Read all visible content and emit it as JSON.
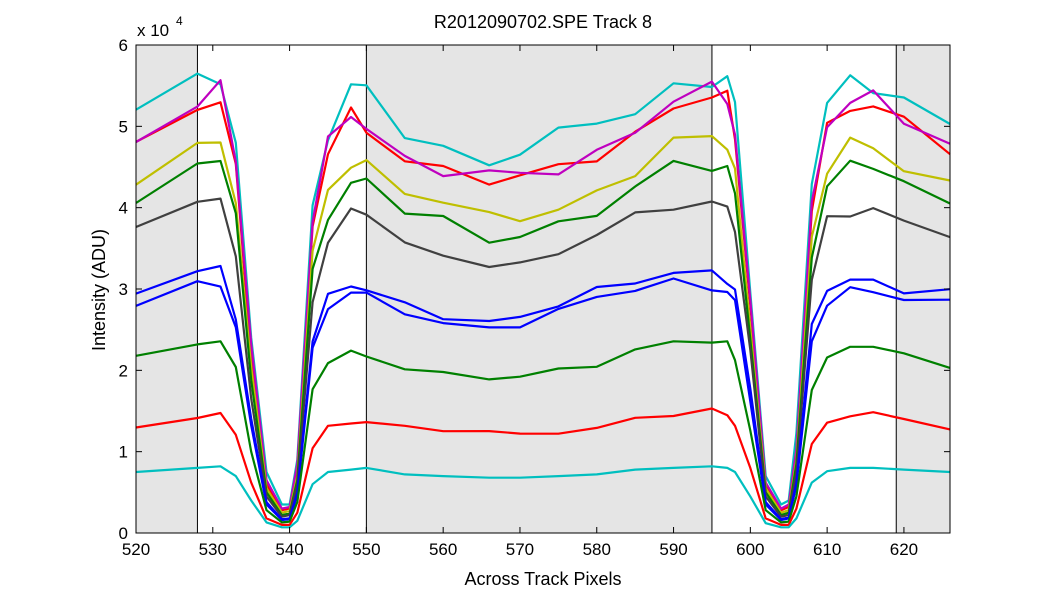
{
  "chart_data": {
    "type": "line",
    "title": "R2012090702.SPE   Track 8",
    "xlabel": "Across Track Pixels",
    "ylabel": "Intensity (ADU)",
    "y_multiplier_label": "x 10",
    "y_multiplier_exponent": "4",
    "xlim": [
      520,
      626
    ],
    "ylim": [
      0,
      6
    ],
    "x_ticks": [
      520,
      530,
      540,
      550,
      560,
      570,
      580,
      590,
      600,
      610,
      620
    ],
    "y_ticks": [
      0,
      1,
      2,
      3,
      4,
      5,
      6
    ],
    "grid": false,
    "shaded_regions": [
      [
        520,
        528
      ],
      [
        550,
        595
      ],
      [
        619,
        626
      ]
    ],
    "vertical_lines": [
      528,
      550,
      595,
      619
    ],
    "profile_x": [
      520,
      528,
      531,
      533,
      535,
      537,
      539,
      540,
      541,
      543,
      545,
      548,
      550,
      555,
      560,
      566,
      570,
      575,
      580,
      585,
      590,
      595,
      597,
      598,
      600,
      602,
      604,
      605,
      606,
      608,
      610,
      613,
      616,
      620,
      626
    ],
    "series": [
      {
        "name": "cyan-top",
        "color": "#00bfbf",
        "values": [
          5.15,
          5.55,
          5.65,
          4.8,
          2.4,
          0.75,
          0.35,
          0.35,
          0.9,
          4.0,
          4.9,
          5.45,
          5.4,
          4.95,
          4.75,
          4.55,
          4.7,
          4.85,
          5.05,
          5.2,
          5.5,
          5.6,
          5.55,
          5.2,
          3.0,
          0.7,
          0.35,
          0.4,
          1.2,
          4.3,
          5.3,
          5.6,
          5.55,
          5.3,
          4.95
        ]
      },
      {
        "name": "red-top",
        "color": "#ff0000",
        "values": [
          4.7,
          5.3,
          5.35,
          4.5,
          2.2,
          0.6,
          0.28,
          0.3,
          0.8,
          3.8,
          4.65,
          5.1,
          5.0,
          4.6,
          4.5,
          4.35,
          4.3,
          4.5,
          4.65,
          4.9,
          5.3,
          5.35,
          5.3,
          4.9,
          2.8,
          0.6,
          0.28,
          0.32,
          1.0,
          4.0,
          5.0,
          5.3,
          5.25,
          5.0,
          4.7
        ]
      },
      {
        "name": "magenta",
        "color": "#bf00bf",
        "values": [
          4.85,
          5.35,
          5.5,
          4.6,
          2.3,
          0.65,
          0.3,
          0.32,
          0.85,
          3.85,
          4.75,
          5.15,
          5.05,
          4.6,
          4.45,
          4.4,
          4.35,
          4.5,
          4.7,
          4.95,
          5.35,
          5.4,
          5.3,
          4.95,
          2.85,
          0.62,
          0.3,
          0.35,
          1.05,
          4.05,
          5.05,
          5.35,
          5.3,
          5.05,
          4.8
        ]
      },
      {
        "name": "olive",
        "color": "#bfbf00",
        "values": [
          4.4,
          4.75,
          4.8,
          4.05,
          2.0,
          0.55,
          0.25,
          0.27,
          0.7,
          3.4,
          4.2,
          4.6,
          4.55,
          4.2,
          4.05,
          3.85,
          3.9,
          4.0,
          4.2,
          4.45,
          4.75,
          4.85,
          4.8,
          4.45,
          2.55,
          0.55,
          0.25,
          0.28,
          0.9,
          3.65,
          4.5,
          4.75,
          4.7,
          4.5,
          4.3
        ]
      },
      {
        "name": "green-top",
        "color": "#008000",
        "values": [
          4.05,
          4.5,
          4.6,
          3.85,
          1.9,
          0.5,
          0.22,
          0.24,
          0.65,
          3.2,
          3.95,
          4.3,
          4.35,
          3.95,
          3.8,
          3.6,
          3.7,
          3.8,
          3.95,
          4.2,
          4.5,
          4.55,
          4.5,
          4.2,
          2.4,
          0.5,
          0.22,
          0.25,
          0.85,
          3.45,
          4.2,
          4.5,
          4.55,
          4.3,
          4.1
        ]
      },
      {
        "name": "dark-gray",
        "color": "#404040",
        "values": [
          3.7,
          4.1,
          4.05,
          3.4,
          1.7,
          0.45,
          0.2,
          0.22,
          0.6,
          2.9,
          3.6,
          3.95,
          3.95,
          3.5,
          3.4,
          3.35,
          3.3,
          3.45,
          3.65,
          3.85,
          4.05,
          4.1,
          4.0,
          3.75,
          2.2,
          0.45,
          0.2,
          0.22,
          0.75,
          3.1,
          3.8,
          3.95,
          4.0,
          3.85,
          3.7
        ]
      },
      {
        "name": "blue-1",
        "color": "#0000ff",
        "values": [
          2.95,
          3.2,
          3.25,
          2.7,
          1.4,
          0.38,
          0.17,
          0.18,
          0.5,
          2.4,
          2.9,
          3.05,
          2.95,
          2.8,
          2.7,
          2.6,
          2.65,
          2.8,
          2.95,
          3.1,
          3.25,
          3.2,
          3.1,
          2.95,
          1.75,
          0.38,
          0.17,
          0.19,
          0.62,
          2.5,
          3.0,
          3.15,
          3.1,
          3.0,
          2.95
        ]
      },
      {
        "name": "blue-2",
        "color": "#0000ff",
        "values": [
          2.8,
          3.05,
          3.1,
          2.55,
          1.3,
          0.35,
          0.16,
          0.17,
          0.47,
          2.25,
          2.75,
          2.95,
          2.9,
          2.75,
          2.6,
          2.5,
          2.55,
          2.7,
          2.9,
          3.05,
          3.1,
          3.0,
          2.95,
          2.8,
          1.65,
          0.35,
          0.16,
          0.18,
          0.58,
          2.35,
          2.85,
          3.0,
          3.0,
          2.85,
          2.8
        ]
      },
      {
        "name": "green-2",
        "color": "#008000",
        "values": [
          2.15,
          2.35,
          2.4,
          2.0,
          1.0,
          0.28,
          0.13,
          0.14,
          0.38,
          1.75,
          2.1,
          2.2,
          2.2,
          2.05,
          1.95,
          1.9,
          1.9,
          2.0,
          2.1,
          2.25,
          2.35,
          2.35,
          2.3,
          2.15,
          1.28,
          0.28,
          0.13,
          0.14,
          0.45,
          1.8,
          2.15,
          2.3,
          2.3,
          2.15,
          2.05
        ]
      },
      {
        "name": "red-bottom",
        "color": "#ff0000",
        "values": [
          1.3,
          1.45,
          1.45,
          1.2,
          0.62,
          0.18,
          0.1,
          0.1,
          0.25,
          1.05,
          1.3,
          1.35,
          1.4,
          1.3,
          1.25,
          1.25,
          1.2,
          1.25,
          1.3,
          1.4,
          1.45,
          1.5,
          1.45,
          1.35,
          0.8,
          0.18,
          0.1,
          0.1,
          0.3,
          1.1,
          1.35,
          1.45,
          1.45,
          1.4,
          1.3
        ]
      },
      {
        "name": "cyan-bottom",
        "color": "#00bfbf",
        "values": [
          0.75,
          0.8,
          0.82,
          0.7,
          0.4,
          0.13,
          0.07,
          0.07,
          0.15,
          0.6,
          0.75,
          0.78,
          0.8,
          0.72,
          0.7,
          0.68,
          0.68,
          0.7,
          0.72,
          0.78,
          0.8,
          0.82,
          0.8,
          0.75,
          0.45,
          0.12,
          0.07,
          0.07,
          0.18,
          0.62,
          0.76,
          0.8,
          0.8,
          0.78,
          0.75
        ]
      }
    ]
  }
}
